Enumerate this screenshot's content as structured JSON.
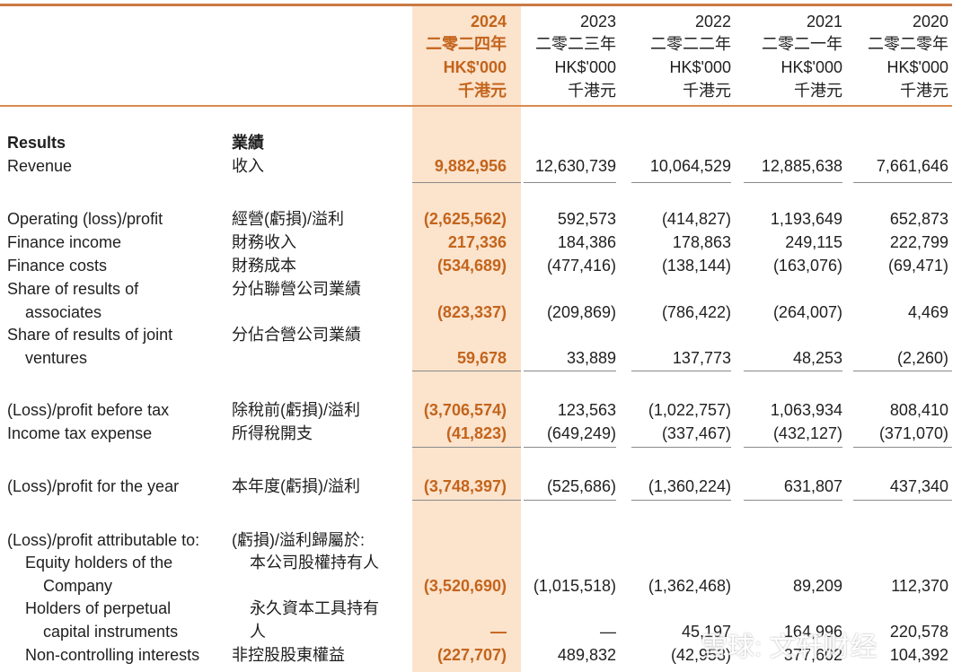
{
  "header": {
    "columns": [
      {
        "year": "2024",
        "cn_year": "二零二四年",
        "unit": "HK$'000",
        "cn_unit": "千港元"
      },
      {
        "year": "2023",
        "cn_year": "二零二三年",
        "unit": "HK$'000",
        "cn_unit": "千港元"
      },
      {
        "year": "2022",
        "cn_year": "二零二二年",
        "unit": "HK$'000",
        "cn_unit": "千港元"
      },
      {
        "year": "2021",
        "cn_year": "二零二一年",
        "unit": "HK$'000",
        "cn_unit": "千港元"
      },
      {
        "year": "2020",
        "cn_year": "二零二零年",
        "unit": "HK$'000",
        "cn_unit": "千港元"
      }
    ]
  },
  "rows": [
    {
      "en": "Results",
      "cn": "業績",
      "values": []
    },
    {
      "en": "Revenue",
      "cn": "收入",
      "values": [
        "9,882,956",
        "12,630,739",
        "10,064,529",
        "12,885,638",
        "7,661,646"
      ]
    },
    {
      "en": "Operating (loss)/profit",
      "cn": "經營(虧損)/溢利",
      "values": [
        "(2,625,562)",
        "592,573",
        "(414,827)",
        "1,193,649",
        "652,873"
      ]
    },
    {
      "en": "Finance income",
      "cn": "財務收入",
      "values": [
        "217,336",
        "184,386",
        "178,863",
        "249,115",
        "222,799"
      ]
    },
    {
      "en": "Finance costs",
      "cn": "財務成本",
      "values": [
        "(534,689)",
        "(477,416)",
        "(138,144)",
        "(163,076)",
        "(69,471)"
      ]
    },
    {
      "en": "Share of results of",
      "cn": "分佔聯營公司業績",
      "values": []
    },
    {
      "en": "associates",
      "cn": "",
      "values": [
        "(823,337)",
        "(209,869)",
        "(786,422)",
        "(264,007)",
        "4,469"
      ]
    },
    {
      "en": "Share of results of joint",
      "cn": "分佔合營公司業績",
      "values": []
    },
    {
      "en": "ventures",
      "cn": "",
      "values": [
        "59,678",
        "33,889",
        "137,773",
        "48,253",
        "(2,260)"
      ]
    },
    {
      "en": "(Loss)/profit before tax",
      "cn": "除稅前(虧損)/溢利",
      "values": [
        "(3,706,574)",
        "123,563",
        "(1,022,757)",
        "1,063,934",
        "808,410"
      ]
    },
    {
      "en": "Income tax expense",
      "cn": "所得稅開支",
      "values": [
        "(41,823)",
        "(649,249)",
        "(337,467)",
        "(432,127)",
        "(371,070)"
      ]
    },
    {
      "en": "(Loss)/profit for the year",
      "cn": "本年度(虧損)/溢利",
      "values": [
        "(3,748,397)",
        "(525,686)",
        "(1,360,224)",
        "631,807",
        "437,340"
      ]
    },
    {
      "en": "(Loss)/profit attributable to:",
      "cn": "(虧損)/溢利歸屬於:",
      "values": []
    },
    {
      "en": "Equity holders of the",
      "cn": "本公司股權持有人",
      "values": []
    },
    {
      "en": "Company",
      "cn": "",
      "values": [
        "(3,520,690)",
        "(1,015,518)",
        "(1,362,468)",
        "89,209",
        "112,370"
      ]
    },
    {
      "en": "Holders of perpetual",
      "cn": "永久資本工具持有",
      "values": []
    },
    {
      "en": "capital instruments",
      "cn": "人",
      "values": [
        "—",
        "—",
        "45,197",
        "164,996",
        "220,578"
      ]
    },
    {
      "en": "Non-controlling interests",
      "cn": "非控股股東權益",
      "values": [
        "(227,707)",
        "489,832",
        "(42,953)",
        "377,602",
        "104,392"
      ]
    }
  ],
  "watermark": "雪球: 文轩财经"
}
